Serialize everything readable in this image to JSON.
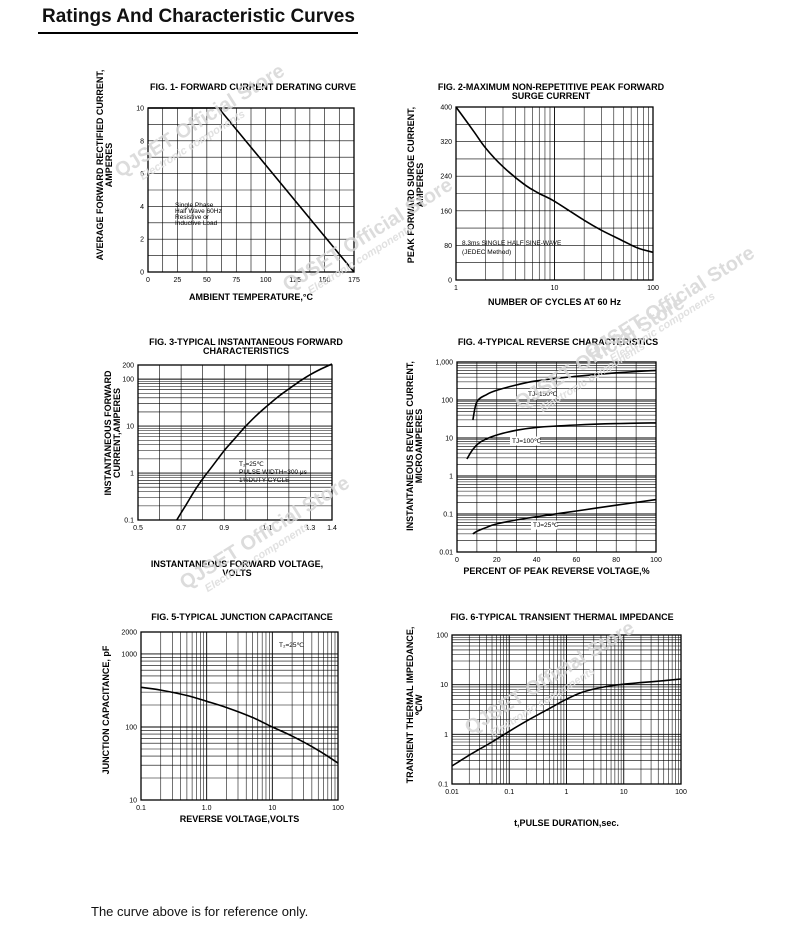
{
  "page": {
    "title": "Ratings And Characteristic Curves",
    "footnote": "The curve above is for reference only.",
    "watermark": [
      "QJSET Official Store",
      "Electronic components"
    ]
  },
  "chart_data": [
    {
      "id": "fig1",
      "type": "line",
      "title": "FIG. 1- FORWARD CURRENT DERATING CURVE",
      "xlabel": "AMBIENT TEMPERATURE,°C",
      "ylabel": "AVERAGE FORWARD RECTIFIED CURRENT, AMPERES",
      "xscale": "linear",
      "yscale": "linear",
      "xlim": [
        0,
        175
      ],
      "ylim": [
        0,
        10
      ],
      "xticks": [
        0,
        25,
        50,
        75,
        100,
        125,
        150,
        175
      ],
      "xtick_labels": [
        "0",
        "25",
        "50",
        "75",
        "100",
        "125",
        "150",
        "175"
      ],
      "yticks": [
        0,
        2,
        4,
        6,
        8,
        10
      ],
      "ytick_labels": [
        "0",
        "2",
        "4",
        "6",
        "8",
        "10"
      ],
      "grid": true,
      "annotations": [
        "Single Phase",
        "Half Wave 60Hz",
        "Resistive or",
        "Inductive Load"
      ],
      "series": [
        {
          "x": [
            0,
            60,
            175
          ],
          "y": [
            10,
            10,
            0
          ]
        }
      ]
    },
    {
      "id": "fig2",
      "type": "line",
      "title": "FIG. 2-MAXIMUM NON-REPETITIVE PEAK FORWARD SURGE CURRENT",
      "xlabel": "NUMBER OF CYCLES AT 60 Hz",
      "ylabel": "PEAK FORWARD SURGE CURRENT, AMPERES",
      "xscale": "log",
      "yscale": "linear",
      "xlim": [
        1,
        100
      ],
      "ylim": [
        0,
        400
      ],
      "xticks": [
        1,
        10,
        100
      ],
      "xtick_labels": [
        "1",
        "10",
        "100"
      ],
      "yticks": [
        0,
        80,
        160,
        240,
        320,
        400
      ],
      "ytick_labels": [
        "0",
        "80",
        "160",
        "240",
        "320",
        "400"
      ],
      "grid": true,
      "annotations": [
        "8.3ms SINGLE HALF SINE-WAVE",
        "(JEDEC Method)"
      ],
      "series": [
        {
          "x": [
            1,
            1.5,
            2,
            3,
            5,
            7,
            10,
            20,
            30,
            50,
            70,
            100
          ],
          "y": [
            400,
            345,
            305,
            262,
            220,
            200,
            182,
            138,
            115,
            90,
            74,
            64
          ]
        }
      ]
    },
    {
      "id": "fig3",
      "type": "line",
      "title": "FIG. 3-TYPICAL INSTANTANEOUS FORWARD CHARACTERISTICS",
      "xlabel": "INSTANTANEOUS FORWARD VOLTAGE, VOLTS",
      "ylabel": "INSTANTANEOUS FORWARD CURRENT,AMPERES",
      "xscale": "linear",
      "yscale": "log",
      "xlim": [
        0.5,
        1.4
      ],
      "ylim": [
        0.1,
        200
      ],
      "xticks": [
        0.5,
        0.7,
        0.9,
        1.1,
        1.3,
        1.4
      ],
      "xtick_labels": [
        "0.5",
        "0.7",
        "0.9",
        "1.1",
        "1.3",
        "1.4"
      ],
      "yticks": [
        0.1,
        1,
        10,
        100,
        200
      ],
      "ytick_labels": [
        "0.1",
        "1",
        "10",
        "100",
        "200"
      ],
      "grid": true,
      "annotations": [
        "T₂=25℃",
        "PULSE WIDTH=300 μs",
        "1%DUTY CYCLE"
      ],
      "series": [
        {
          "x": [
            0.68,
            0.72,
            0.76,
            0.8,
            0.85,
            0.9,
            0.95,
            1.0,
            1.05,
            1.1,
            1.15,
            1.2,
            1.25,
            1.3,
            1.35,
            1.4
          ],
          "y": [
            0.1,
            0.2,
            0.4,
            0.75,
            1.5,
            3,
            5.5,
            10,
            17,
            27,
            42,
            62,
            90,
            125,
            165,
            210
          ]
        }
      ]
    },
    {
      "id": "fig4",
      "type": "line",
      "title": "FIG. 4-TYPICAL REVERSE CHARACTERISTICS",
      "xlabel": "PERCENT OF PEAK REVERSE VOLTAGE,%",
      "ylabel": "INSTANTANEOUS REVERSE CURRENT, MICROAMPERES",
      "xscale": "linear",
      "yscale": "log",
      "xlim": [
        0,
        100
      ],
      "ylim": [
        0.01,
        1000
      ],
      "xticks": [
        0,
        20,
        40,
        60,
        80,
        100
      ],
      "xtick_labels": [
        "0",
        "20",
        "40",
        "60",
        "80",
        "100"
      ],
      "yticks": [
        0.01,
        0.1,
        1,
        10,
        100,
        1000
      ],
      "ytick_labels": [
        "0.01",
        "0.1",
        "1",
        "10",
        "100",
        "1,000"
      ],
      "grid": true,
      "series": [
        {
          "name": "TJ=150℃",
          "x": [
            8,
            10,
            15,
            20,
            30,
            40,
            60,
            80,
            100
          ],
          "y": [
            30,
            90,
            140,
            180,
            250,
            320,
            420,
            520,
            600
          ]
        },
        {
          "name": "TJ=100℃",
          "x": [
            5,
            8,
            12,
            20,
            30,
            40,
            60,
            80,
            100
          ],
          "y": [
            2.8,
            5,
            8,
            12,
            16,
            19,
            22,
            24,
            25
          ]
        },
        {
          "name": "TJ=25℃",
          "x": [
            8,
            10,
            15,
            20,
            30,
            40,
            60,
            80,
            100
          ],
          "y": [
            0.03,
            0.035,
            0.045,
            0.055,
            0.07,
            0.085,
            0.12,
            0.17,
            0.24
          ]
        }
      ]
    },
    {
      "id": "fig5",
      "type": "line",
      "title": "FIG. 5-TYPICAL JUNCTION CAPACITANCE",
      "xlabel": "REVERSE VOLTAGE,VOLTS",
      "ylabel": "JUNCTION CAPACITANCE, pF",
      "xscale": "log",
      "yscale": "log",
      "xlim": [
        0.1,
        100
      ],
      "ylim": [
        10,
        2000
      ],
      "xticks": [
        0.1,
        1,
        10,
        100
      ],
      "xtick_labels": [
        "0.1",
        "1.0",
        "10",
        "100"
      ],
      "yticks": [
        10,
        100,
        1000,
        2000
      ],
      "ytick_labels": [
        "10",
        "100",
        "1000",
        "2000"
      ],
      "grid": true,
      "annotations": [
        "T₂=25℃"
      ],
      "series": [
        {
          "x": [
            0.1,
            0.2,
            0.5,
            1,
            2,
            5,
            10,
            20,
            50,
            100
          ],
          "y": [
            350,
            320,
            270,
            225,
            185,
            135,
            100,
            75,
            48,
            32
          ]
        }
      ]
    },
    {
      "id": "fig6",
      "type": "line",
      "title": "FIG. 6-TYPICAL TRANSIENT THERMAL IMPEDANCE",
      "xlabel": "t,PULSE DURATION,sec.",
      "ylabel": "TRANSIENT THERMAL IMPEDANCE, ℃/W",
      "xscale": "log",
      "yscale": "log",
      "xlim": [
        0.01,
        100
      ],
      "ylim": [
        0.1,
        100
      ],
      "xticks": [
        0.01,
        0.1,
        1,
        10,
        100
      ],
      "xtick_labels": [
        "0.01",
        "0.1",
        "1",
        "10",
        "100"
      ],
      "yticks": [
        0.1,
        1,
        10,
        100
      ],
      "ytick_labels": [
        "0.1",
        "1",
        "10",
        "100"
      ],
      "grid": true,
      "series": [
        {
          "x": [
            0.01,
            0.02,
            0.05,
            0.1,
            0.2,
            0.5,
            1,
            2,
            5,
            10,
            20,
            50,
            100
          ],
          "y": [
            0.23,
            0.38,
            0.7,
            1.15,
            1.85,
            3.3,
            5.1,
            7.2,
            9.2,
            10.2,
            11,
            12,
            13
          ]
        }
      ]
    }
  ]
}
